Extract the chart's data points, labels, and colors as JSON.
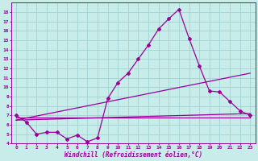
{
  "xlabel": "Windchill (Refroidissement éolien,°C)",
  "xlim": [
    -0.5,
    23.5
  ],
  "ylim": [
    4,
    19
  ],
  "xticks": [
    0,
    1,
    2,
    3,
    4,
    5,
    6,
    7,
    8,
    9,
    10,
    11,
    12,
    13,
    14,
    15,
    16,
    17,
    18,
    19,
    20,
    21,
    22,
    23
  ],
  "yticks": [
    4,
    5,
    6,
    7,
    8,
    9,
    10,
    11,
    12,
    13,
    14,
    15,
    16,
    17,
    18
  ],
  "bg_color": "#c8ecea",
  "grid_color": "#a0d4d0",
  "line_color": "#990099",
  "main_series_x": [
    0,
    1,
    2,
    3,
    4,
    5,
    6,
    7,
    8,
    9,
    10,
    11,
    12,
    13,
    14,
    15,
    16,
    17,
    18,
    19,
    20,
    21,
    22,
    23
  ],
  "main_series_y": [
    7.0,
    6.3,
    5.0,
    5.2,
    5.2,
    4.5,
    4.9,
    4.2,
    4.6,
    8.8,
    10.5,
    11.5,
    13.0,
    14.5,
    16.2,
    17.3,
    18.3,
    15.2,
    12.3,
    9.6,
    9.5,
    8.5,
    7.5,
    7.0
  ],
  "line2_x": [
    0,
    23
  ],
  "line2_y": [
    6.8,
    6.8
  ],
  "line3_x": [
    0,
    23
  ],
  "line3_y": [
    6.5,
    11.5
  ],
  "line4_x": [
    0,
    23
  ],
  "line4_y": [
    6.5,
    7.2
  ]
}
